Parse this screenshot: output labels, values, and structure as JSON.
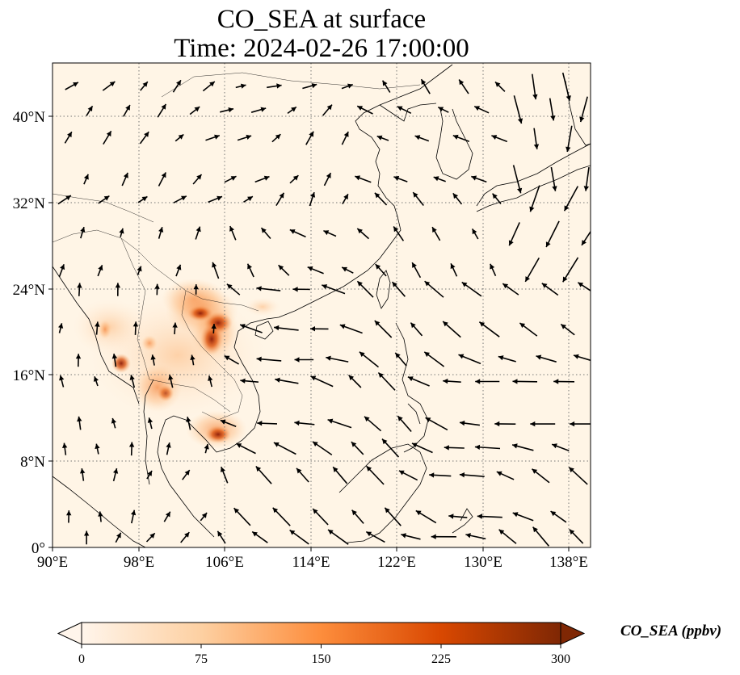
{
  "title": {
    "line1": "CO_SEA at surface",
    "line2": "Time: 2024-02-26 17:00:00"
  },
  "map": {
    "lon_range": [
      90,
      140
    ],
    "lat_range": [
      0,
      45
    ],
    "x_ticks": [
      "90°E",
      "98°E",
      "106°E",
      "114°E",
      "122°E",
      "130°E",
      "138°E"
    ],
    "y_ticks": [
      "0°",
      "8°N",
      "16°N",
      "24°N",
      "32°N",
      "40°N"
    ],
    "gridlines": true,
    "grid_style": "dotted",
    "wind_vectors": true
  },
  "colorbar": {
    "label": "CO_SEA (ppbv)",
    "ticks": [
      "0",
      "75",
      "150",
      "225",
      "300"
    ],
    "range": [
      0,
      300
    ],
    "extend": "both",
    "colormap": [
      "#fff5eb",
      "#fdd0a2",
      "#fd8d3c",
      "#d94801",
      "#7f2704"
    ]
  },
  "colors": {
    "background": "#fff5e6",
    "coast": "#000000",
    "grid": "#777777",
    "arrow": "#000000"
  }
}
